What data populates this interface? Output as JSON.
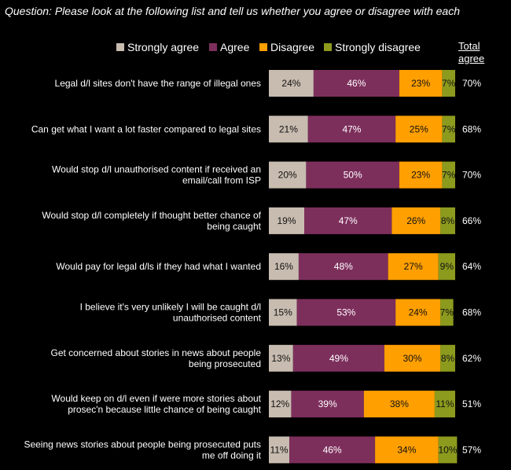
{
  "question": "Question: Please look at the following list and tell us whether you agree or disagree with each",
  "total_header": "Total agree",
  "chart_data": {
    "type": "bar",
    "orientation": "horizontal",
    "stacked": true,
    "categories": [
      [
        "Legal d/l sites don't have the range of illegal ones"
      ],
      [
        "Can get what I want a lot faster compared to legal sites"
      ],
      [
        "Would stop d/l unauthorised content if received an",
        "email/call from ISP"
      ],
      [
        "Would stop d/l completely if thought better chance of",
        "being caught"
      ],
      [
        "Would pay for legal d/ls if they had what I wanted"
      ],
      [
        "I believe it's very unlikely I will be caught d/l",
        "unauthorised content"
      ],
      [
        "Get concerned about stories in news about people",
        "being prosecuted"
      ],
      [
        "Would keep on d/l even if were more stories about",
        "prosec'n because little chance of being caught"
      ],
      [
        "Seeing news stories about people being prosecuted puts",
        "me off doing it"
      ]
    ],
    "series": [
      {
        "name": "Strongly agree",
        "color": "#c8bcb0",
        "label_color": "dark",
        "values": [
          24,
          21,
          20,
          19,
          16,
          15,
          13,
          12,
          11
        ]
      },
      {
        "name": "Agree",
        "color": "#7d2f5c",
        "label_color": "light",
        "values": [
          46,
          47,
          50,
          47,
          48,
          53,
          49,
          39,
          46
        ]
      },
      {
        "name": "Disagree",
        "color": "#ff9f00",
        "label_color": "dark",
        "values": [
          23,
          25,
          23,
          26,
          27,
          24,
          30,
          38,
          34
        ]
      },
      {
        "name": "Strongly disagree",
        "color": "#8c9a1e",
        "label_color": "dark",
        "values": [
          7,
          7,
          7,
          8,
          9,
          7,
          8,
          11,
          10
        ]
      }
    ],
    "total_agree": [
      70,
      68,
      70,
      66,
      64,
      68,
      62,
      51,
      57
    ],
    "value_suffix": "%",
    "xlim": [
      0,
      100
    ]
  }
}
